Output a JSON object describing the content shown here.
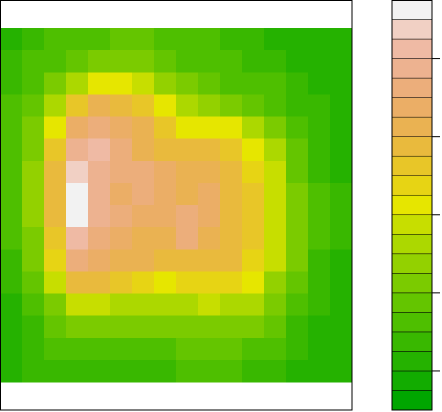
{
  "chart_data": {
    "type": "contour",
    "zlim": [
      90,
      195
    ],
    "levels": [
      90,
      95,
      100,
      105,
      110,
      115,
      120,
      125,
      130,
      135,
      140,
      145,
      150,
      155,
      160,
      165,
      170,
      175,
      180,
      185,
      190,
      195
    ],
    "colors": [
      "#00A600",
      "#12AC00",
      "#25B200",
      "#39B800",
      "#4EBF00",
      "#64C500",
      "#7BCB00",
      "#93D100",
      "#ACD800",
      "#C7DE00",
      "#E6E600",
      "#E7D414",
      "#E8C628",
      "#E9BA3D",
      "#EAB252",
      "#EBAE66",
      "#ECAE7B",
      "#EDB290",
      "#EFBAA4",
      "#F1D0C4",
      "#F2F2F2"
    ],
    "zticks": [
      100,
      120,
      140,
      160,
      180
    ],
    "z": [
      [
        104,
        106,
        110,
        112,
        114,
        116,
        115,
        113,
        112,
        110,
        108,
        106,
        104,
        103,
        102,
        100
      ],
      [
        106,
        110,
        114,
        118,
        122,
        124,
        122,
        118,
        114,
        112,
        110,
        108,
        106,
        104,
        102,
        101
      ],
      [
        108,
        114,
        122,
        132,
        140,
        142,
        136,
        128,
        122,
        118,
        114,
        112,
        110,
        106,
        104,
        102
      ],
      [
        110,
        118,
        132,
        150,
        160,
        158,
        150,
        140,
        132,
        126,
        120,
        116,
        112,
        108,
        105,
        102
      ],
      [
        112,
        122,
        142,
        165,
        172,
        168,
        160,
        150,
        144,
        144,
        140,
        132,
        122,
        112,
        106,
        103
      ],
      [
        112,
        124,
        150,
        178,
        182,
        170,
        162,
        158,
        156,
        156,
        150,
        142,
        130,
        116,
        108,
        104
      ],
      [
        112,
        126,
        155,
        188,
        178,
        170,
        174,
        165,
        160,
        160,
        155,
        148,
        135,
        118,
        108,
        104
      ],
      [
        112,
        126,
        156,
        192,
        178,
        168,
        170,
        168,
        162,
        165,
        158,
        150,
        138,
        120,
        110,
        105
      ],
      [
        112,
        126,
        156,
        190,
        176,
        170,
        168,
        168,
        172,
        166,
        158,
        150,
        138,
        122,
        110,
        105
      ],
      [
        110,
        124,
        152,
        180,
        174,
        168,
        164,
        162,
        170,
        162,
        156,
        150,
        138,
        122,
        110,
        105
      ],
      [
        108,
        120,
        146,
        170,
        166,
        162,
        160,
        158,
        156,
        158,
        156,
        148,
        136,
        120,
        108,
        104
      ],
      [
        106,
        116,
        136,
        155,
        156,
        150,
        146,
        144,
        146,
        148,
        146,
        140,
        128,
        116,
        106,
        103
      ],
      [
        104,
        110,
        124,
        136,
        138,
        134,
        130,
        132,
        134,
        136,
        134,
        130,
        122,
        112,
        105,
        102
      ],
      [
        104,
        108,
        116,
        122,
        122,
        120,
        120,
        122,
        124,
        124,
        124,
        120,
        116,
        108,
        104,
        101
      ],
      [
        104,
        106,
        110,
        114,
        114,
        114,
        114,
        114,
        116,
        118,
        116,
        114,
        110,
        106,
        102,
        100
      ],
      [
        104,
        105,
        106,
        108,
        108,
        108,
        108,
        108,
        110,
        110,
        110,
        108,
        106,
        104,
        101,
        100
      ]
    ]
  }
}
